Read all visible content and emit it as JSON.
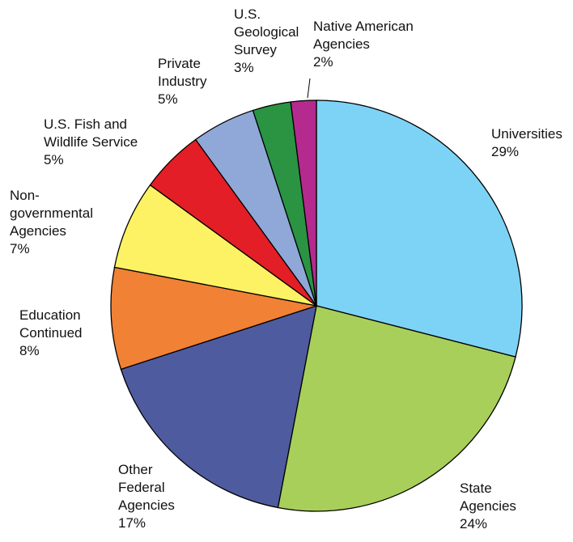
{
  "chart_data": {
    "type": "pie",
    "categories": [
      "Universities",
      "State\nAgencies",
      "Other\nFederal\nAgencies",
      "Education\nContinued",
      "Non-\ngovernmental\nAgencies",
      "U.S. Fish and\nWildlife Service",
      "Private\nIndustry",
      "U.S.\nGeological\nSurvey",
      "Native American\nAgencies"
    ],
    "values": [
      29,
      24,
      17,
      8,
      7,
      5,
      5,
      3,
      2
    ],
    "value_labels": [
      "29%",
      "24%",
      "17%",
      "8%",
      "7%",
      "5%",
      "5%",
      "3%",
      "2%"
    ],
    "colors": [
      "#7dd3f5",
      "#a8cf5a",
      "#4f5b9f",
      "#f08135",
      "#fdf264",
      "#e41e26",
      "#8fa8d8",
      "#2a9443",
      "#b52a8e"
    ]
  }
}
